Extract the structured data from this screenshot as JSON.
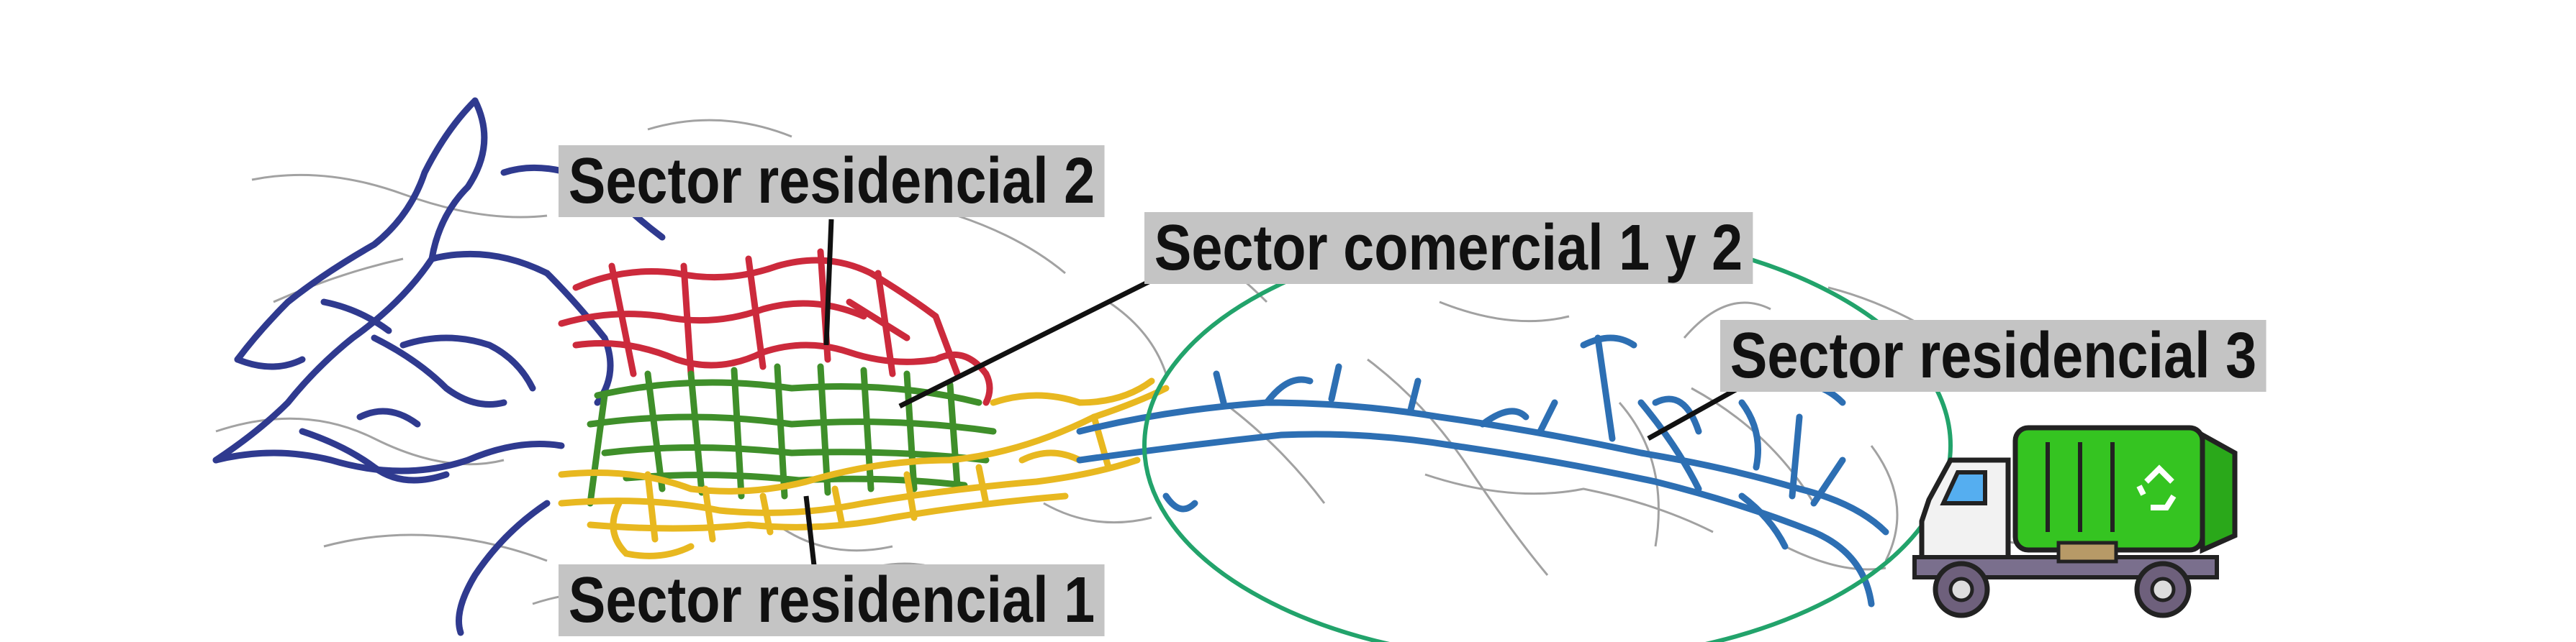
{
  "labels": {
    "residencial_2": "Sector residencial 2",
    "comercial": "Sector comercial 1 y  2",
    "residencial_3": "Sector residencial 3",
    "residencial_1": "Sector residencial 1"
  },
  "colors": {
    "residencial_2_routes": "#cc2a3c",
    "comercial_routes": "#3f8f2a",
    "residencial_1_routes": "#e8b820",
    "residencial_3_routes": "#2d6fb3",
    "outer_routes": "#2f3a8f",
    "zone_circle": "#22a36b",
    "label_background": "#c4c4c4",
    "truck_body": "#35c421"
  },
  "icons": [
    "garbage-truck-icon",
    "recycle-icon"
  ]
}
